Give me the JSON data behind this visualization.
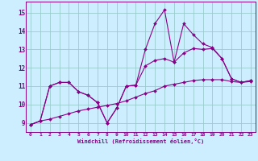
{
  "xlabel": "Windchill (Refroidissement éolien,°C)",
  "bg_color": "#cceeff",
  "line_color": "#880088",
  "grid_color": "#99cccc",
  "xlim": [
    -0.5,
    23.5
  ],
  "ylim": [
    8.5,
    15.6
  ],
  "xticks": [
    0,
    1,
    2,
    3,
    4,
    5,
    6,
    7,
    8,
    9,
    10,
    11,
    12,
    13,
    14,
    15,
    16,
    17,
    18,
    19,
    20,
    21,
    22,
    23
  ],
  "yticks": [
    9,
    10,
    11,
    12,
    13,
    14,
    15
  ],
  "line1_x": [
    0,
    1,
    2,
    3,
    4,
    5,
    6,
    7,
    8,
    9,
    10,
    11,
    12,
    13,
    14,
    15,
    16,
    17,
    18,
    19,
    20,
    21,
    22,
    23
  ],
  "line1_y": [
    8.9,
    9.1,
    11.0,
    11.2,
    11.2,
    10.7,
    10.5,
    10.1,
    9.0,
    9.8,
    11.0,
    11.05,
    13.0,
    14.4,
    15.15,
    12.3,
    14.4,
    13.8,
    13.3,
    13.1,
    12.5,
    11.4,
    11.2,
    11.3
  ],
  "line2_x": [
    0,
    1,
    2,
    3,
    4,
    5,
    6,
    7,
    8,
    9,
    10,
    11,
    12,
    13,
    14,
    15,
    16,
    17,
    18,
    19,
    20,
    21,
    22,
    23
  ],
  "line2_y": [
    8.9,
    9.1,
    11.0,
    11.2,
    11.2,
    10.7,
    10.5,
    10.1,
    9.0,
    9.8,
    11.0,
    11.05,
    12.1,
    12.4,
    12.5,
    12.3,
    12.8,
    13.05,
    13.0,
    13.05,
    12.5,
    11.4,
    11.2,
    11.3
  ],
  "line3_x": [
    0,
    1,
    2,
    3,
    4,
    5,
    6,
    7,
    8,
    9,
    10,
    11,
    12,
    13,
    14,
    15,
    16,
    17,
    18,
    19,
    20,
    21,
    22,
    23
  ],
  "line3_y": [
    8.9,
    9.1,
    9.2,
    9.35,
    9.5,
    9.65,
    9.75,
    9.85,
    9.95,
    10.05,
    10.2,
    10.4,
    10.6,
    10.75,
    11.0,
    11.1,
    11.2,
    11.3,
    11.35,
    11.35,
    11.35,
    11.25,
    11.2,
    11.25
  ]
}
